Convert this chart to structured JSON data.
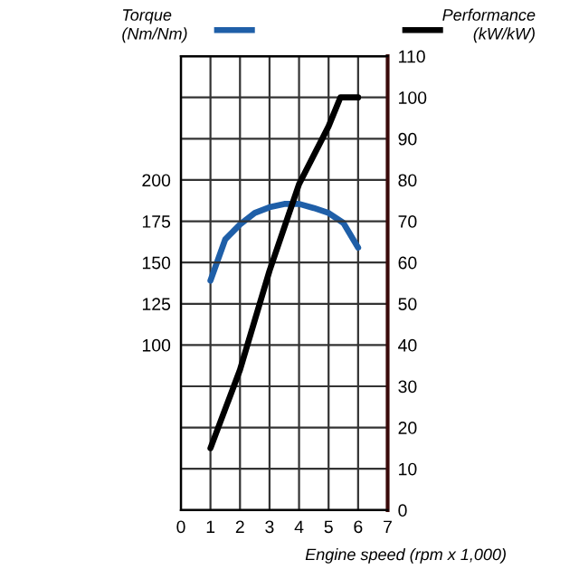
{
  "chart_data": {
    "type": "line",
    "xlabel": "Engine speed (rpm x 1,000)",
    "ylabel": "Torque\n(Nm/Nm)",
    "y2label": "Performance\n(kW/kW)",
    "xlim": [
      0,
      7
    ],
    "xticks": [
      0,
      1,
      2,
      3,
      4,
      5,
      6,
      7
    ],
    "ylim": [
      0,
      275
    ],
    "yticks": [
      100,
      125,
      150,
      175,
      200
    ],
    "y2lim": [
      0,
      110
    ],
    "y2ticks": [
      0,
      10,
      20,
      30,
      40,
      50,
      60,
      70,
      80,
      90,
      100,
      110
    ],
    "grid": true,
    "line_style": "solid",
    "series": [
      {
        "color": "#1f5fa8",
        "axis": "y",
        "x": [
          1,
          1.5,
          2,
          2.5,
          3,
          3.5,
          4,
          4.5,
          5,
          5.5,
          6
        ],
        "values": [
          139,
          164,
          173,
          180,
          183.5,
          185.5,
          185.5,
          183,
          180,
          174,
          159
        ]
      },
      {
        "color": "#000000",
        "axis": "y2",
        "x": [
          1,
          2,
          3,
          4,
          5,
          5.4,
          6
        ],
        "values": [
          15,
          34,
          58,
          79,
          93,
          100,
          100
        ]
      }
    ]
  }
}
